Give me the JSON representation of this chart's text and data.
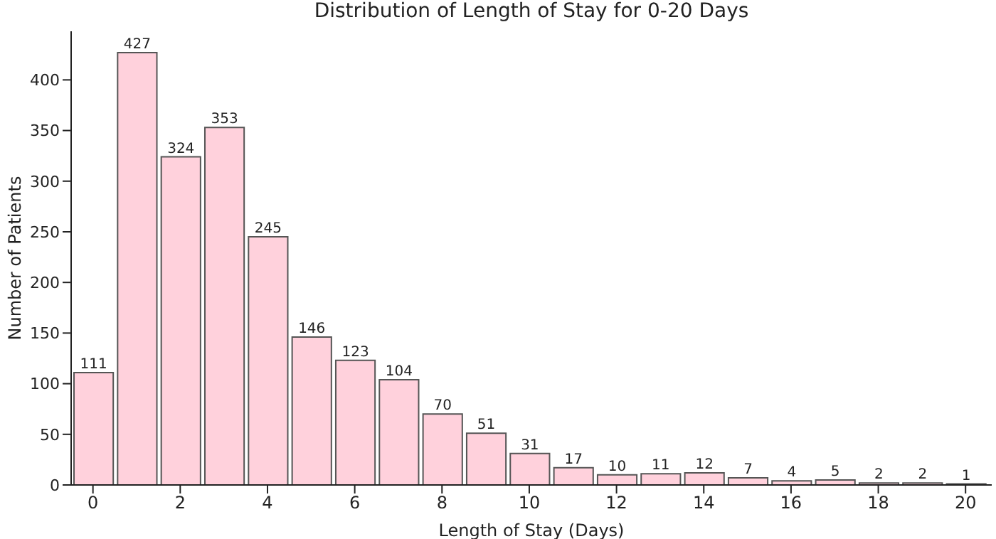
{
  "chart_data": {
    "type": "histogram",
    "title": "Distribution of Length of Stay for 0-20 Days",
    "xlabel": "Length of Stay (Days)",
    "ylabel": "Number of Patients",
    "bins": [
      -0.5,
      0.5,
      1.5,
      2.5,
      3.5,
      4.5,
      5.5,
      6.5,
      7.5,
      8.5,
      9.5,
      10.5,
      11.5,
      12.5,
      13.5,
      14.5,
      15.5,
      16.5,
      17.5,
      18.5,
      19.5,
      20.5
    ],
    "values": [
      111,
      427,
      324,
      353,
      245,
      146,
      123,
      104,
      70,
      51,
      31,
      17,
      10,
      11,
      12,
      7,
      4,
      5,
      2,
      2,
      1
    ],
    "color": "#ffd1dc",
    "xlim": [
      -0.5,
      20.6
    ],
    "xticks": [
      0,
      2,
      4,
      6,
      8,
      10,
      12,
      14,
      16,
      18,
      20
    ],
    "ylim": [
      0,
      448
    ],
    "yticks": [
      0,
      50,
      100,
      150,
      200,
      250,
      300,
      350,
      400
    ],
    "data_labels": true,
    "grid": false
  }
}
